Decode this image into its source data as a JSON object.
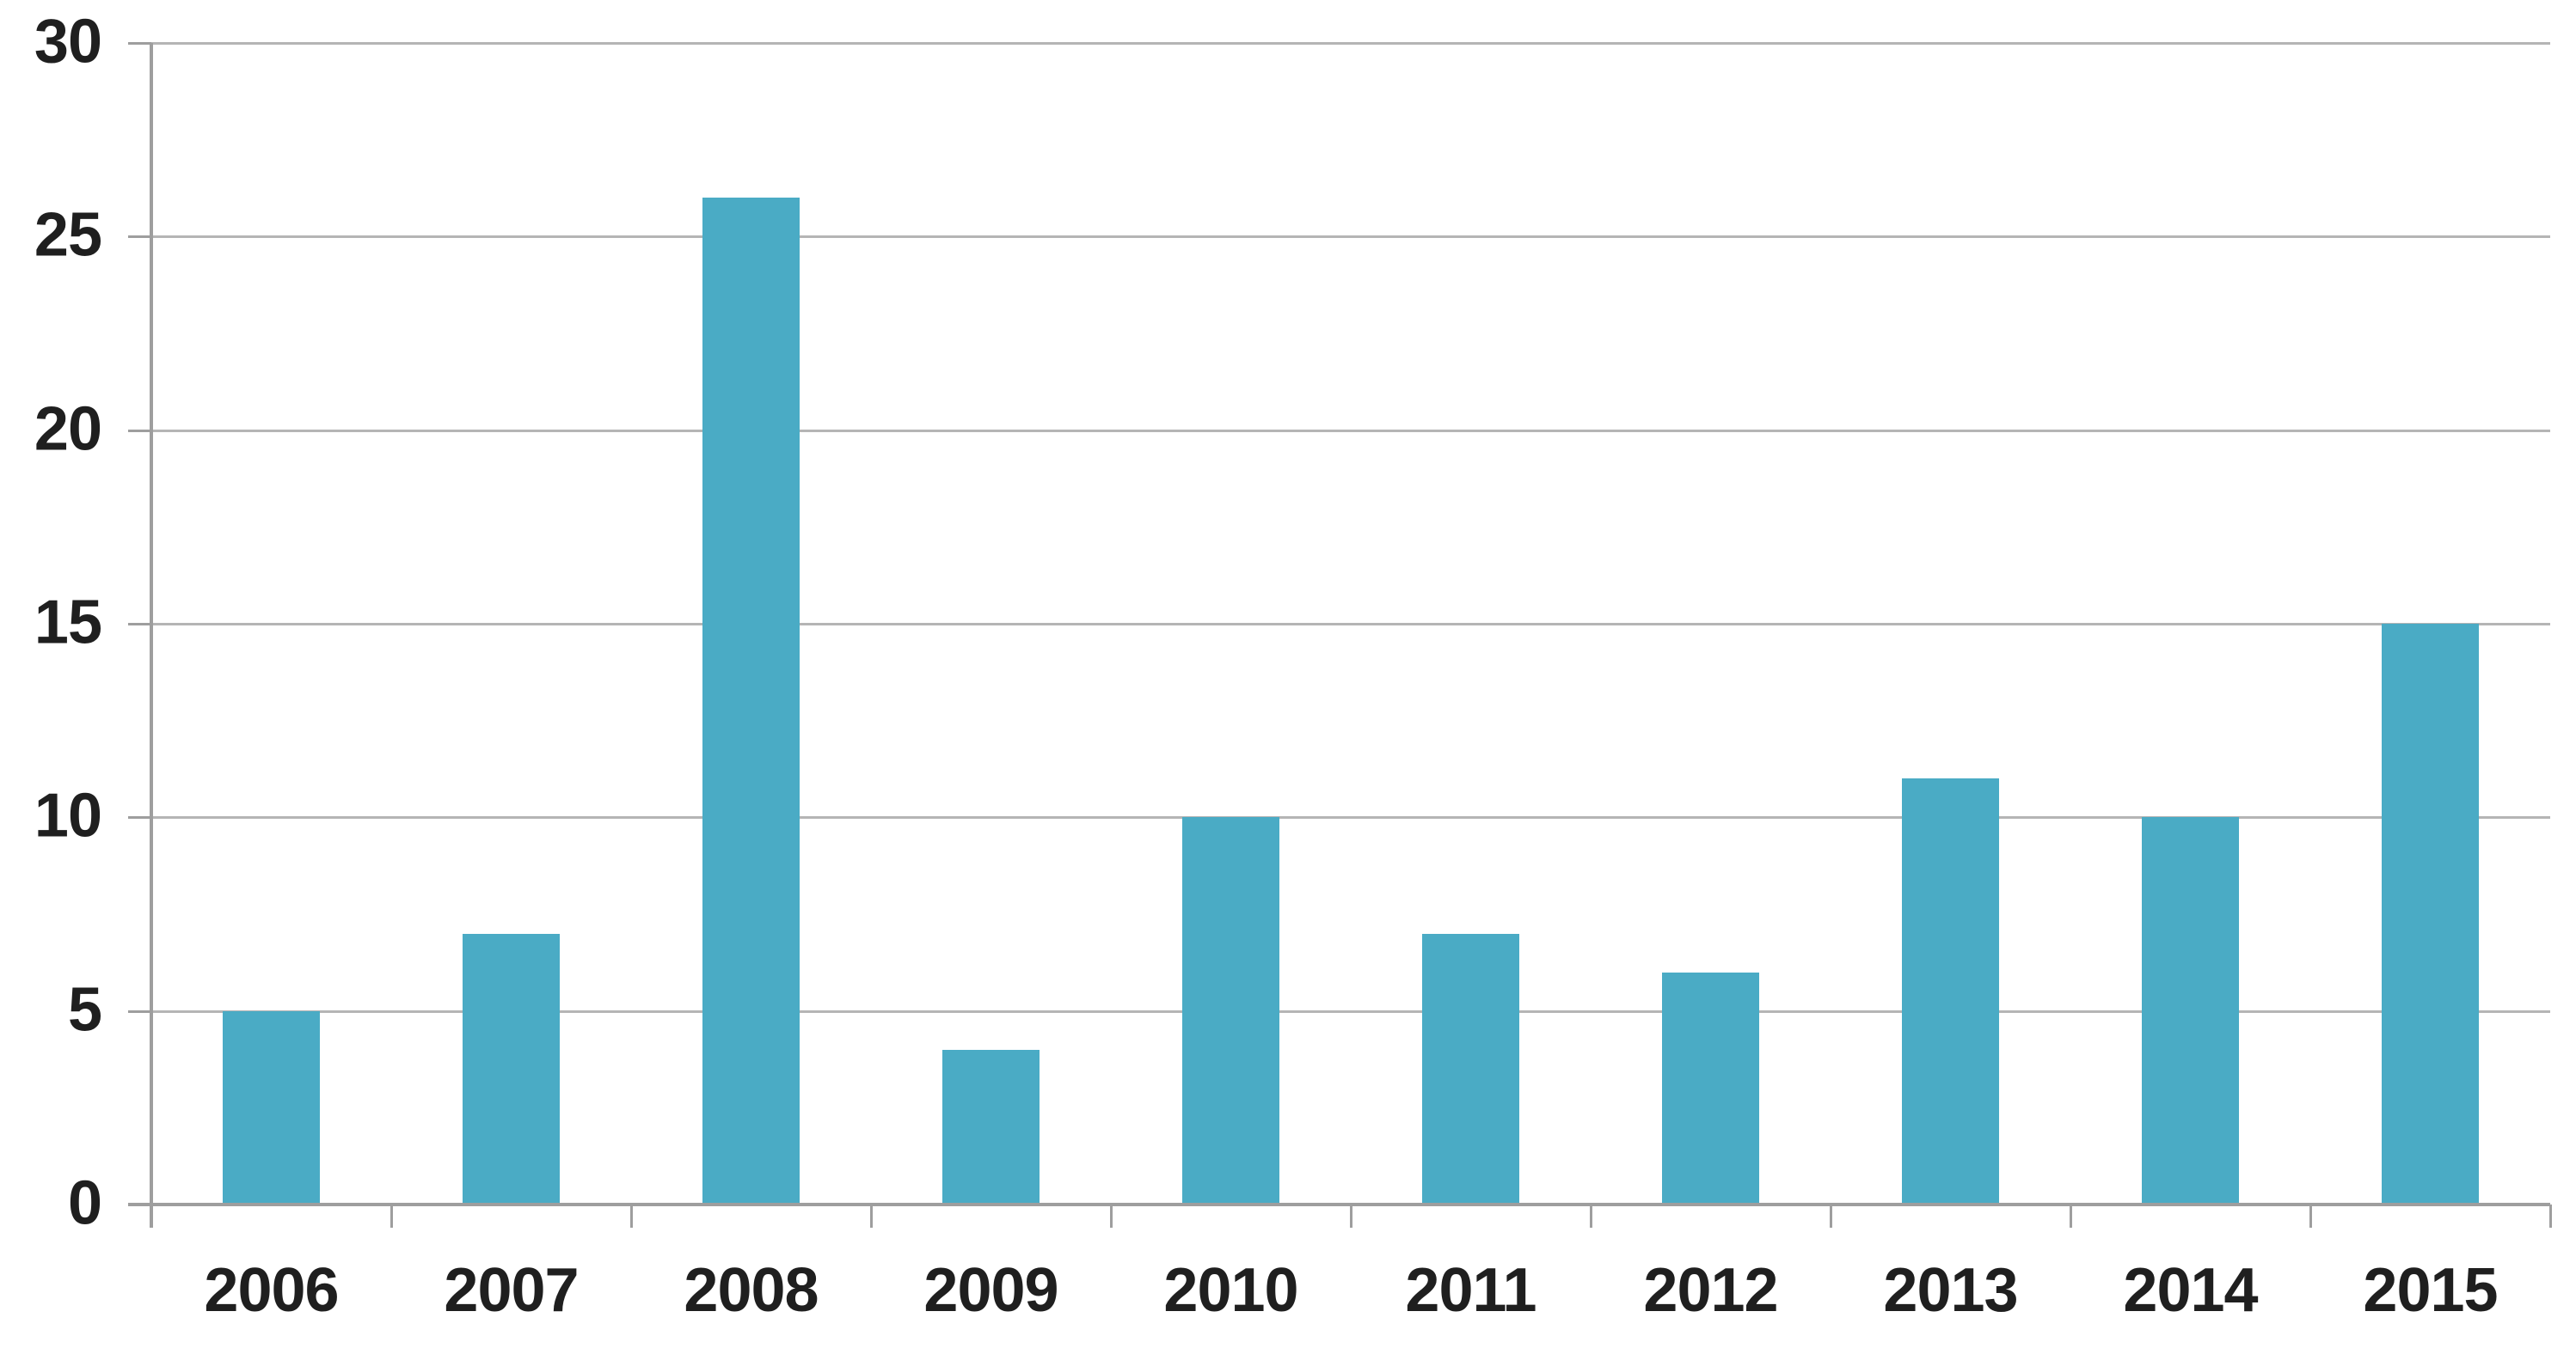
{
  "chart_data": {
    "type": "bar",
    "title": "",
    "xlabel": "",
    "ylabel": "",
    "categories": [
      "2006",
      "2007",
      "2008",
      "2009",
      "2010",
      "2011",
      "2012",
      "2013",
      "2014",
      "2015"
    ],
    "values": [
      5,
      7,
      26,
      4,
      10,
      7,
      6,
      11,
      10,
      15
    ],
    "ylim": [
      0,
      30
    ],
    "yticks": [
      0,
      5,
      10,
      15,
      20,
      25,
      30
    ],
    "grid": "horizontal-on",
    "legend": "none",
    "colors": {
      "bar_fill": "#4aabc5",
      "gridline": "#b5b5b5",
      "axis": "#9e9e9e",
      "label_text": "#1f1f1f",
      "background": "#ffffff"
    }
  }
}
